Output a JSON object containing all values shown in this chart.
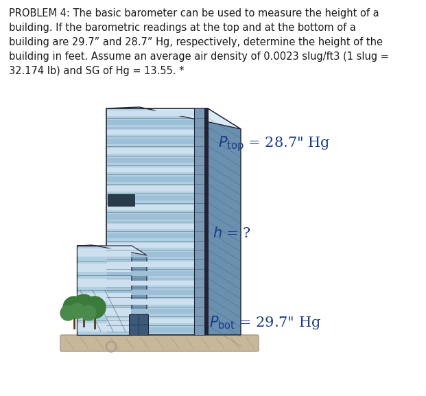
{
  "title_text": "PROBLEM 4: The basic barometer can be used to measure the height of a\nbuilding. If the barometric readings at the top and at the bottom of a\nbuilding are 29.7” and 28.7” Hg, respectively, determine the height of the\nbuilding in feet. Assume an average air density of 0.0023 slug/ft3 (1 slug =\n32.174 lb) and SG of Hg = 13.55. *",
  "text_color": "#1a1a1a",
  "label_color": "#1a3a8a",
  "bg_color": "#ffffff",
  "title_fontsize": 10.5,
  "label_fontsize": 15,
  "fig_width": 6.21,
  "fig_height": 5.77,
  "building": {
    "front_color": "#b0cfe0",
    "front_dark": "#8aafc8",
    "side_color": "#6a90b0",
    "top_color": "#d8eaf5",
    "edge_color": "#222233",
    "stripe_light": "#cce0ef",
    "stripe_dark": "#9dc0d8",
    "stripe_line": "#3a4a5a"
  },
  "annex": {
    "front_color": "#b0cfe0",
    "side_color": "#7a9ab8",
    "top_color": "#d0e5f5",
    "edge_color": "#222233"
  },
  "platform_color": "#c8b89a",
  "platform_edge": "#9a8a70",
  "tree_foliage": "#3a7a3a",
  "tree_trunk": "#5a3a1a"
}
